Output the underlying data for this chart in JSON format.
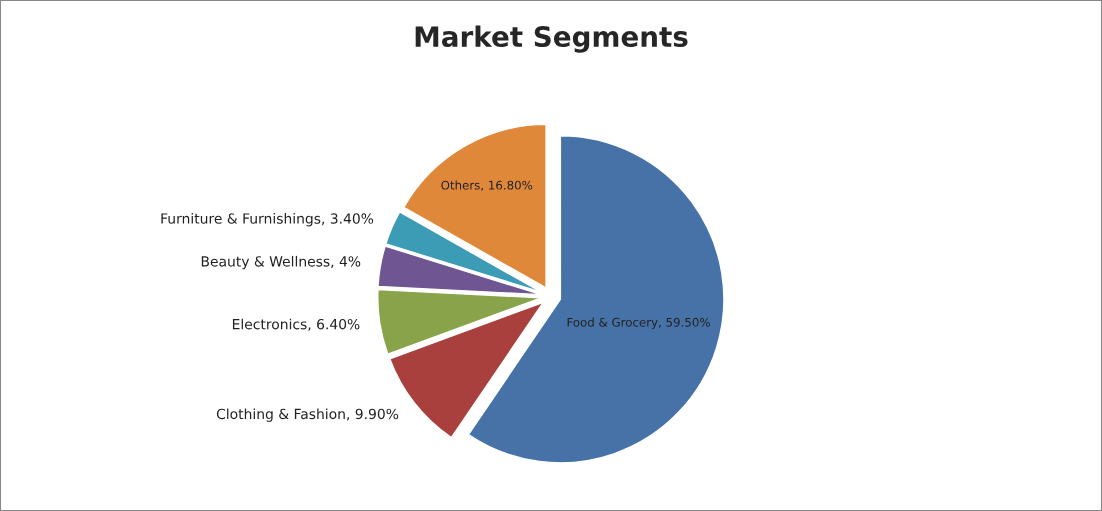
{
  "chart_data": {
    "type": "pie",
    "title": "Market Segments",
    "categories": [
      "Food & Grocery",
      "Clothing & Fashion",
      "Electronics",
      "Beauty & Wellness",
      "Furniture & Furnishings",
      "Others"
    ],
    "values": [
      59.5,
      9.9,
      6.4,
      4,
      3.4,
      16.8
    ],
    "value_labels": [
      "59.50%",
      "9.90%",
      "6.40%",
      "4%",
      "3.40%",
      "16.80%"
    ],
    "colors": [
      "#4672a8",
      "#a9403d",
      "#88a34a",
      "#6f5592",
      "#3d9cb5",
      "#e0883a"
    ],
    "legend": false
  }
}
